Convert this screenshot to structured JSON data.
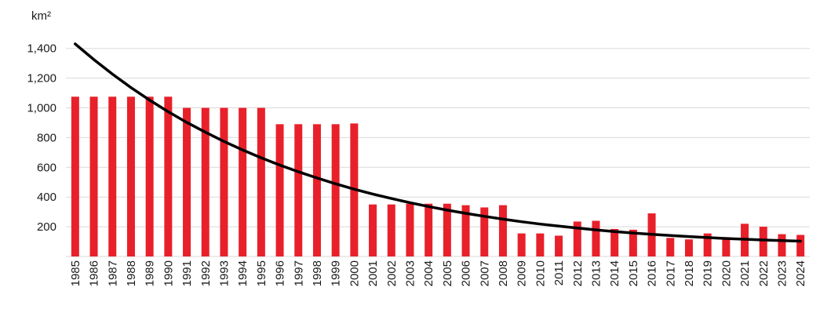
{
  "chart_data": {
    "type": "bar",
    "ylabel": "km²",
    "categories": [
      "1985",
      "1986",
      "1987",
      "1988",
      "1989",
      "1990",
      "1991",
      "1992",
      "1993",
      "1994",
      "1995",
      "1996",
      "1997",
      "1998",
      "1999",
      "2000",
      "2001",
      "2002",
      "2003",
      "2004",
      "2005",
      "2006",
      "2007",
      "2008",
      "2009",
      "2010",
      "2011",
      "2012",
      "2013",
      "2014",
      "2015",
      "2016",
      "2017",
      "2018",
      "2019",
      "2020",
      "2021",
      "2022",
      "2023",
      "2024"
    ],
    "values": [
      1075,
      1075,
      1075,
      1075,
      1075,
      1075,
      1000,
      1000,
      1000,
      1000,
      1000,
      890,
      890,
      890,
      890,
      895,
      350,
      350,
      355,
      355,
      355,
      345,
      330,
      345,
      155,
      155,
      140,
      235,
      240,
      185,
      180,
      290,
      125,
      115,
      155,
      130,
      220,
      200,
      150,
      145
    ],
    "trendline": {
      "type": "exponential",
      "values": [
        1430,
        1325,
        1227,
        1136,
        1052,
        974,
        902,
        836,
        774,
        717,
        664,
        615,
        570,
        528,
        489,
        453,
        420,
        390,
        362,
        336,
        312,
        290,
        270,
        251,
        234,
        218,
        204,
        191,
        179,
        168,
        158,
        149,
        141,
        134,
        127,
        121,
        116,
        111,
        107,
        103
      ]
    },
    "ylim": [
      0,
      1500
    ],
    "yticks": [
      "200",
      "400",
      "600",
      "800",
      "1,000",
      "1,200",
      "1,400"
    ],
    "grid": true,
    "colors": {
      "bar": "#e8202a",
      "trend": "#000000",
      "grid": "#d9d9d9"
    }
  }
}
